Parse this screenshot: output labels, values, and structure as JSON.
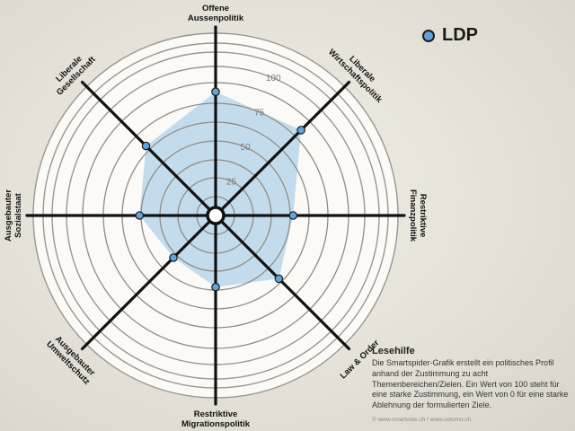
{
  "legend": {
    "party": "LDP",
    "color": "#5fa4dd"
  },
  "chart_data": {
    "type": "radar",
    "title": "",
    "axes": [
      [
        "Offene",
        "Aussenpolitik"
      ],
      [
        "Liberale",
        "Wirtschaftspolitik"
      ],
      [
        "Restriktive",
        "Finanzpolitik"
      ],
      [
        "Law & Order"
      ],
      [
        "Restriktive",
        "Migrationspolitik"
      ],
      [
        "Ausgebauter",
        "Umweltschutz"
      ],
      [
        "Ausgebauter",
        "Sozialstaat"
      ],
      [
        "Liberale",
        "Gesellschaft"
      ]
    ],
    "ring_ticks": [
      "25",
      "50",
      "75",
      "100"
    ],
    "range": [
      0,
      100
    ],
    "series": [
      {
        "name": "LDP",
        "values": [
          83,
          81,
          52,
          60,
          48,
          40,
          51,
          66
        ]
      }
    ]
  },
  "help": {
    "title": "Lesehilfe",
    "text": "Die Smartspider-Grafik erstellt ein politisches Profil anhand der Zustimmung zu acht Themenbereichen/Zielen. Ein Wert von 100 steht für eine starke Zustimmung, ein Wert von 0 für eine starke Ablehnung der formulierten Ziele.",
    "credit": "© www.smartvote.ch / www.sotomo.ch"
  }
}
